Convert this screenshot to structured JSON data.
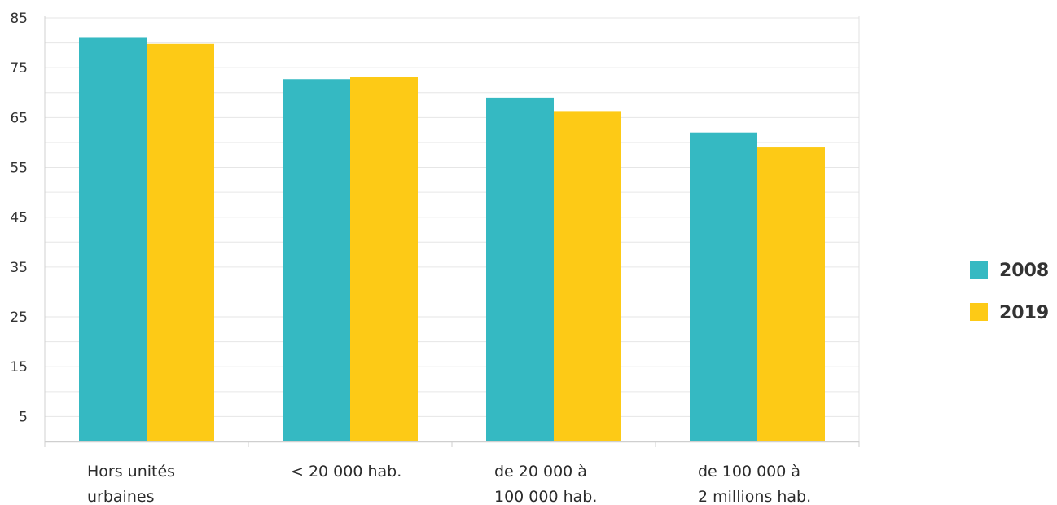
{
  "chart_data": {
    "type": "bar",
    "categories": [
      [
        "Hors unités",
        "urbaines"
      ],
      [
        "< 20 000 hab."
      ],
      [
        "de 20 000 à",
        "100 000 hab."
      ],
      [
        "de 100 000 à",
        "2 millions hab."
      ]
    ],
    "series": [
      {
        "name": "2008",
        "color": "#35b9c2",
        "values": [
          81,
          72.7,
          69,
          62
        ]
      },
      {
        "name": "2019",
        "color": "#fdca16",
        "values": [
          79.8,
          73.2,
          66.3,
          59
        ]
      }
    ],
    "ylim": [
      0,
      85
    ],
    "yticks": [
      5,
      15,
      25,
      35,
      45,
      55,
      65,
      75,
      85
    ],
    "grid": true,
    "legend_position": "right"
  }
}
